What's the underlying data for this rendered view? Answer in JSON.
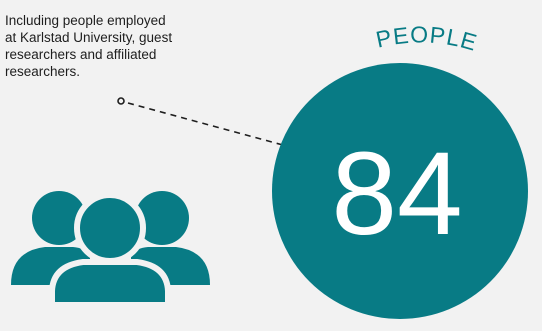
{
  "annotation": {
    "lines": [
      "Including people employed",
      "at Karlstad University, guest",
      "researchers and affiliated",
      "researchers."
    ]
  },
  "stat": {
    "value": "84",
    "label": "PEOPLE"
  },
  "icon": "people-group-icon",
  "colors": {
    "accent": "#087b85",
    "background": "#f2f2f2",
    "text": "#1e1e1e",
    "number": "#ffffff"
  }
}
